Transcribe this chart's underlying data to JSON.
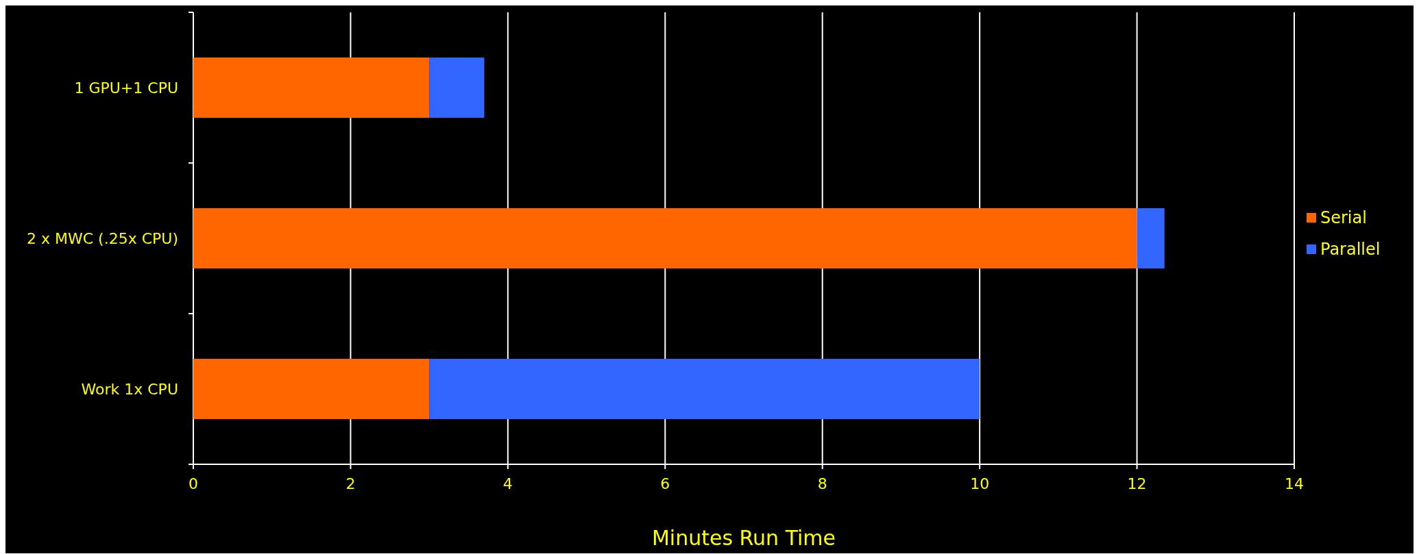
{
  "chart_data": {
    "type": "bar",
    "orientation": "horizontal",
    "stacked": true,
    "xlabel": "Minutes Run Time",
    "categories": [
      "1 GPU+1 CPU",
      "2 x MWC (.25x CPU)",
      "Work 1x CPU"
    ],
    "series": [
      {
        "name": "Serial",
        "color": "#ff6600",
        "values": [
          3,
          12,
          3
        ]
      },
      {
        "name": "Parallel",
        "color": "#3366ff",
        "values": [
          0.7,
          0.35,
          7
        ]
      }
    ],
    "xlim": [
      0,
      14
    ],
    "xticks": [
      0,
      2,
      4,
      6,
      8,
      10,
      12,
      14
    ],
    "grid": "x",
    "legend": "right"
  }
}
